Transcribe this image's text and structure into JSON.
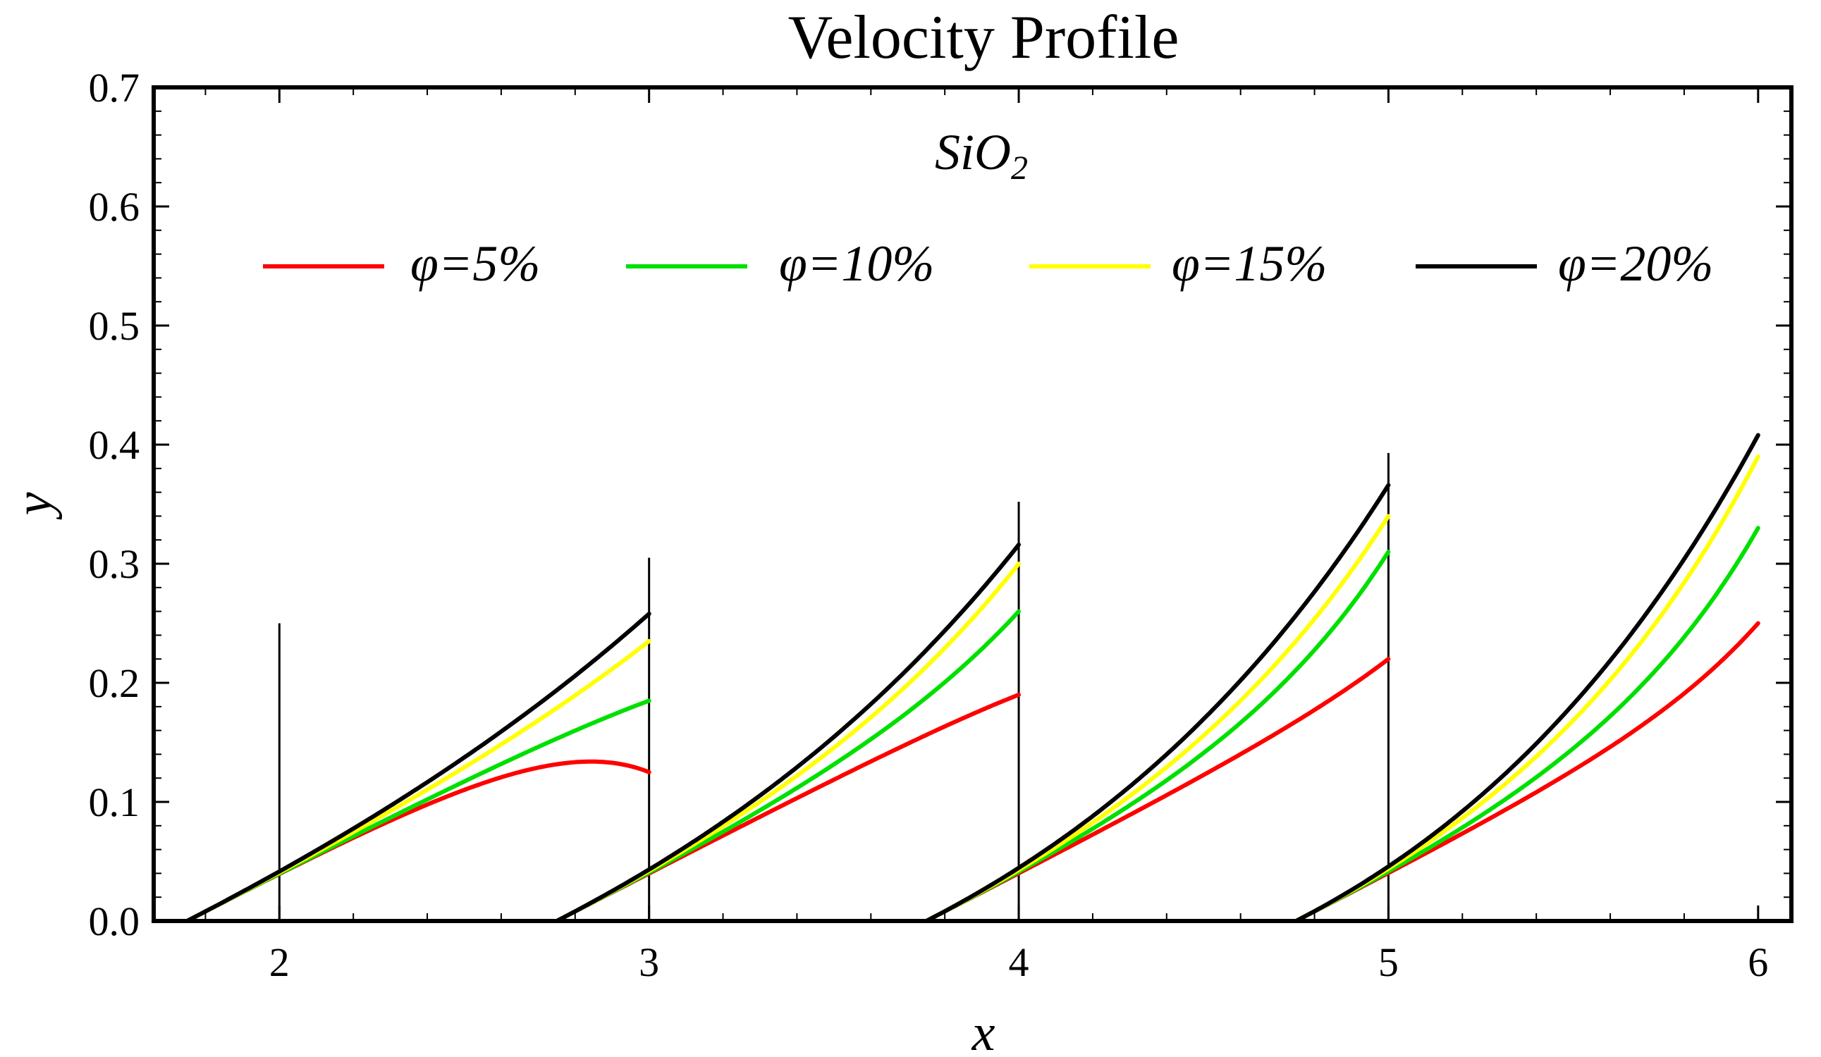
{
  "chart_data": {
    "type": "line",
    "title": "Velocity Profile",
    "xlabel": "x",
    "ylabel": "y",
    "xlim": [
      1.66,
      6.09
    ],
    "ylim": [
      0,
      0.7
    ],
    "xticks": [
      2,
      3,
      4,
      5,
      6
    ],
    "yticks": [
      0.0,
      0.1,
      0.2,
      0.3,
      0.4,
      0.5,
      0.6,
      0.7
    ],
    "ytick_labels": [
      "0.0",
      "0.1",
      "0.2",
      "0.3",
      "0.4",
      "0.5",
      "0.6",
      "0.7"
    ],
    "annotation": {
      "text": "SiO",
      "subscript": "2"
    },
    "legend_position": "top",
    "series": [
      {
        "name": "φ=5%",
        "color": "#ff0000"
      },
      {
        "name": "φ=10%",
        "color": "#00e000"
      },
      {
        "name": "φ=15%",
        "color": "#ffff00"
      },
      {
        "name": "φ=20%",
        "color": "#000000"
      }
    ],
    "profiles": [
      {
        "x0": 1.75,
        "x1": 3.0,
        "tops": [
          0.125,
          0.185,
          0.235,
          0.258
        ]
      },
      {
        "x0": 2.75,
        "x1": 4.0,
        "tops": [
          0.19,
          0.26,
          0.3,
          0.316
        ]
      },
      {
        "x0": 3.75,
        "x1": 5.0,
        "tops": [
          0.22,
          0.31,
          0.34,
          0.366
        ]
      },
      {
        "x0": 4.75,
        "x1": 6.0,
        "tops": [
          0.25,
          0.33,
          0.39,
          0.408
        ]
      }
    ],
    "curve_shape": {
      "slope_fractions": [
        0.45,
        0.6,
        0.8,
        0.9
      ],
      "knee_k": [
        4.5,
        3.2,
        2.0,
        1.2
      ],
      "initial_slope": 0.16
    },
    "vertical_lines": [
      {
        "x": 2,
        "y_top": 0.25
      },
      {
        "x": 3,
        "y_top": 0.305
      },
      {
        "x": 4,
        "y_top": 0.352
      },
      {
        "x": 5,
        "y_top": 0.393
      }
    ]
  }
}
